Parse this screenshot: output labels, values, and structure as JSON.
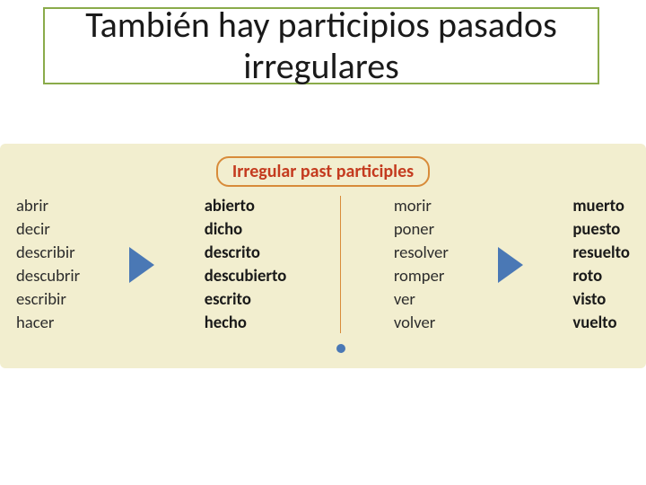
{
  "title": {
    "text": "También hay participios pasados irregulares",
    "fontsize_pt": 30,
    "color": "#1a1a1a",
    "box_border_color": "#8aab4a",
    "box_bg_color": "#ffffff"
  },
  "infographic": {
    "bg_color": "#f2eecf",
    "subtitle": "Irregular past participles",
    "subtitle_color": "#c43b1f",
    "subtitle_border_color": "#d88b3a",
    "subtitle_fontsize_pt": 15,
    "infinitive_color": "#2d2d2d",
    "participle_color": "#1a1a1a",
    "infinitive_fontsize_pt": 14,
    "participle_fontsize_pt": 14,
    "arrow_color": "#4a78b5",
    "divider_color": "#d88b3a",
    "dot_color": "#4a78b5",
    "left": {
      "infinitives": [
        "abrir",
        "decir",
        "describir",
        "descubrir",
        "escribir",
        "hacer"
      ],
      "participles": [
        "abierto",
        "dicho",
        "descrito",
        "descubierto",
        "escrito",
        "hecho"
      ]
    },
    "right": {
      "infinitives": [
        "morir",
        "poner",
        "resolver",
        "romper",
        "ver",
        "volver"
      ],
      "participles": [
        "muerto",
        "puesto",
        "resuelto",
        "roto",
        "visto",
        "vuelto"
      ]
    }
  }
}
